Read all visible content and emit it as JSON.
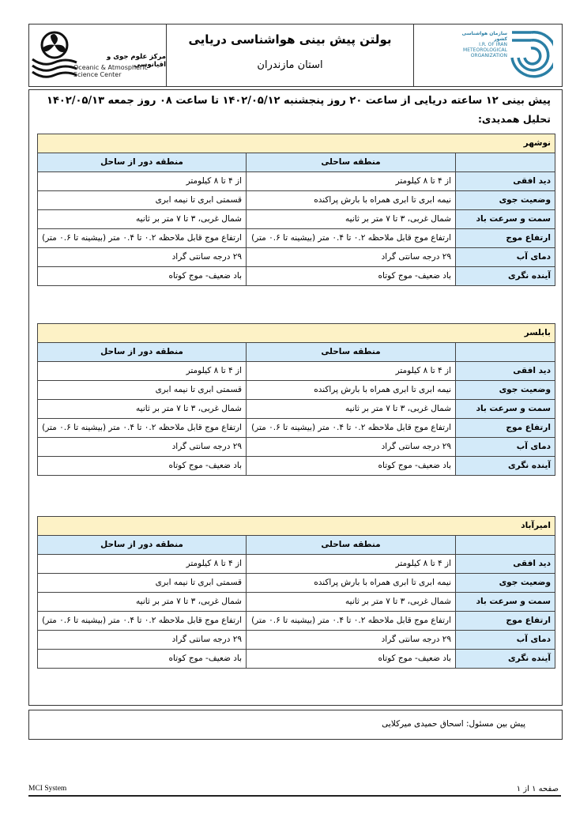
{
  "header": {
    "title": "بولتن پیش بینی هواشناسی دریایی",
    "province": "استان مازندران",
    "left_logo": {
      "fa": "مرکز علوم جوی و اقیانوسی",
      "en1": "Oceanic & Atmospheric",
      "en2": "Science Center"
    },
    "right_logo": {
      "fa": "سازمان هواشناسی کشور",
      "en1": "I.R. OF IRAN",
      "en2": "METEOROLOGICAL",
      "en3": "ORGANIZATION",
      "color": "#2a7fa5"
    }
  },
  "forecast_title": "پیش بینی ۱۲ ساعته دریایی از ساعت ۲۰ روز پنجشنبه ۱۴۰۲/۰۵/۱۲ تا ساعت ۰۸ روز جمعه ۱۴۰۲/۰۵/۱۳",
  "synoptic_label": "تحلیل همدیدی:",
  "columns": {
    "coastal": "منطقه ساحلی",
    "offshore": "منطقه دور از ساحل"
  },
  "colors": {
    "station_bg": "#fdf2c6",
    "header_bg": "#d3eaf9"
  },
  "stations": [
    {
      "name": "نوشهر",
      "rows": [
        {
          "label": "دید افقی",
          "coastal": "از ۴ تا ۸ کیلومتر",
          "offshore": "از ۴ تا ۸ کیلومتر"
        },
        {
          "label": "وضعیت جوی",
          "coastal": "نیمه ابری تا ابری همراه با بارش پراکنده",
          "offshore": "قسمتی ابری تا نیمه ابری"
        },
        {
          "label": "سمت و سرعت باد",
          "coastal": "شمال غربی، ۳ تا ۷ متر بر ثانیه",
          "offshore": "شمال غربی، ۳ تا ۷ متر بر ثانیه"
        },
        {
          "label": "ارتفاع موج",
          "coastal": "ارتفاع موج قابل ملاحظه ۰.۲  تا ۰.۴ متر  (بیشینه تا ۰.۶ متر)",
          "offshore": "ارتفاع موج قابل ملاحظه ۰.۲  تا ۰.۴ متر  (بیشینه تا ۰.۶ متر)"
        },
        {
          "label": "دمای آب",
          "coastal": "۲۹ درجه سانتی گراد",
          "offshore": "۲۹ درجه سانتی گراد"
        },
        {
          "label": "آینده نگری",
          "coastal": "باد ضعیف- موج کوتاه",
          "offshore": "باد ضعیف- موج کوتاه"
        }
      ]
    },
    {
      "name": "بابلسر",
      "rows": [
        {
          "label": "دید افقی",
          "coastal": "از ۴ تا ۸ کیلومتر",
          "offshore": "از ۴ تا ۸ کیلومتر"
        },
        {
          "label": "وضعیت جوی",
          "coastal": "نیمه ابری تا ابری همراه با بارش پراکنده",
          "offshore": "قسمتی ابری تا نیمه ابری"
        },
        {
          "label": "سمت و سرعت باد",
          "coastal": "شمال غربی، ۳ تا ۷ متر بر ثانیه",
          "offshore": "شمال غربی، ۳ تا ۷ متر بر ثانیه"
        },
        {
          "label": "ارتفاع موج",
          "coastal": "ارتفاع موج قابل ملاحظه ۰.۲  تا ۰.۴ متر  (بیشینه تا ۰.۶ متر)",
          "offshore": "ارتفاع موج قابل ملاحظه ۰.۲  تا ۰.۴ متر  (بیشینه تا ۰.۶ متر)"
        },
        {
          "label": "دمای آب",
          "coastal": "۲۹ درجه سانتی گراد",
          "offshore": "۲۹ درجه سانتی گراد"
        },
        {
          "label": "آینده نگری",
          "coastal": "باد ضعیف- موج کوتاه",
          "offshore": "باد ضعیف- موج کوتاه"
        }
      ]
    },
    {
      "name": "امیرآباد",
      "rows": [
        {
          "label": "دید افقی",
          "coastal": "از ۴ تا ۸ کیلومتر",
          "offshore": "از ۴ تا ۸ کیلومتر"
        },
        {
          "label": "وضعیت جوی",
          "coastal": "نیمه ابری تا ابری همراه با بارش پراکنده",
          "offshore": "قسمتی ابری تا نیمه ابری"
        },
        {
          "label": "سمت و سرعت باد",
          "coastal": "شمال غربی، ۳ تا ۷ متر بر ثانیه",
          "offshore": "شمال غربی، ۳ تا ۷ متر بر ثانیه"
        },
        {
          "label": "ارتفاع موج",
          "coastal": "ارتفاع موج قابل ملاحظه ۰.۲  تا ۰.۴ متر  (بیشینه تا ۰.۶ متر)",
          "offshore": "ارتفاع موج قابل ملاحظه ۰.۲  تا ۰.۴ متر  (بیشینه تا ۰.۶ متر)"
        },
        {
          "label": "دمای آب",
          "coastal": "۲۹ درجه سانتی گراد",
          "offshore": "۲۹ درجه سانتی گراد"
        },
        {
          "label": "آینده نگری",
          "coastal": "باد ضعیف- موج کوتاه",
          "offshore": "باد ضعیف- موج کوتاه"
        }
      ]
    }
  ],
  "forecaster": "پیش بین مسئول:  اسحاق  حمیدی میرکلایی",
  "footer": {
    "system": "MCI System",
    "page": "صفحه  ۱  از  ۱"
  }
}
